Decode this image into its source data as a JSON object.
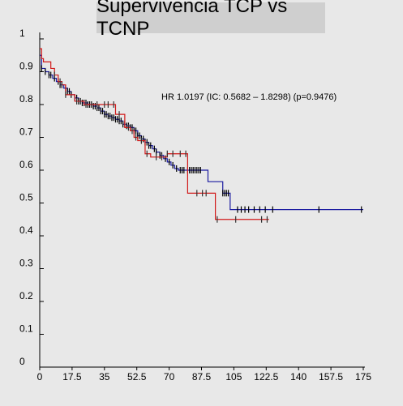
{
  "chart_data": {
    "type": "line",
    "title": "Supervivencia TCP vs TCNP",
    "xlabel": "",
    "ylabel": "",
    "xlim": [
      0,
      175
    ],
    "ylim": [
      0,
      1
    ],
    "x_ticks": [
      "0",
      "17.5",
      "35",
      "52.5",
      "70",
      "87.5",
      "105",
      "122.5",
      "140",
      "157.5",
      "175"
    ],
    "y_ticks": [
      "0",
      "0.1",
      "0.2",
      "0.3",
      "0.4",
      "0.5",
      "0.6",
      "0.7",
      "0.8",
      "0.9",
      "1"
    ],
    "annotation": "HR 1.0197 (IC: 0.5682 – 1.8298) (p=0.9476)",
    "grid": false,
    "legend": "none",
    "series": [
      {
        "color": "#1a1aa0",
        "x": [
          0,
          1,
          3,
          5,
          7,
          9,
          11,
          13,
          15,
          17,
          19,
          21,
          23,
          26,
          29,
          31,
          33,
          35,
          37,
          39,
          41,
          43,
          45,
          47,
          49,
          51,
          53,
          55,
          57,
          59,
          61,
          63,
          65,
          67,
          69,
          71,
          73,
          75,
          77,
          79,
          81,
          83,
          85,
          87,
          89,
          91,
          95,
          99,
          103,
          106,
          110,
          114,
          120,
          150,
          175
        ],
        "y": [
          0.95,
          0.91,
          0.9,
          0.89,
          0.88,
          0.87,
          0.86,
          0.85,
          0.84,
          0.83,
          0.82,
          0.81,
          0.805,
          0.8,
          0.795,
          0.79,
          0.78,
          0.77,
          0.765,
          0.76,
          0.755,
          0.75,
          0.74,
          0.735,
          0.73,
          0.72,
          0.705,
          0.695,
          0.685,
          0.675,
          0.665,
          0.655,
          0.645,
          0.635,
          0.625,
          0.615,
          0.605,
          0.6,
          0.6,
          0.6,
          0.6,
          0.6,
          0.6,
          0.6,
          0.6,
          0.565,
          0.565,
          0.53,
          0.48,
          0.48,
          0.48,
          0.48,
          0.48,
          0.48,
          0.48
        ],
        "censor_x": [
          1,
          3,
          5,
          6,
          8,
          10,
          11,
          12,
          14,
          15,
          16,
          17,
          19,
          20,
          21,
          22,
          23,
          24,
          25,
          26,
          27,
          28,
          29,
          30,
          31,
          32,
          33,
          34,
          35,
          36,
          37,
          38,
          39,
          40,
          41,
          42,
          43,
          44,
          45,
          46,
          47,
          48,
          49,
          50,
          51,
          52,
          53,
          54,
          55,
          56,
          57,
          58,
          59,
          60,
          62,
          63,
          65,
          66,
          68,
          70,
          72,
          74,
          76,
          77,
          78,
          80,
          81,
          82,
          83,
          84,
          85,
          86,
          87,
          99,
          100,
          101,
          102,
          107,
          109,
          111,
          113,
          116,
          119,
          122,
          126,
          151,
          174
        ]
      },
      {
        "color": "#d11919",
        "x": [
          0,
          1,
          2,
          6,
          8,
          10,
          12,
          14,
          19,
          24,
          33,
          41,
          46,
          49,
          51,
          53,
          57,
          60,
          64,
          69,
          76,
          80,
          86,
          92,
          95,
          105,
          122,
          124
        ],
        "y": [
          0.97,
          0.94,
          0.93,
          0.91,
          0.89,
          0.87,
          0.86,
          0.83,
          0.81,
          0.8,
          0.8,
          0.77,
          0.73,
          0.72,
          0.7,
          0.69,
          0.65,
          0.64,
          0.64,
          0.65,
          0.65,
          0.53,
          0.53,
          0.53,
          0.45,
          0.45,
          0.45,
          0.45
        ],
        "censor_x": [
          8,
          11,
          12,
          14,
          20,
          22,
          25,
          28,
          31,
          35,
          37,
          40,
          43,
          48,
          50,
          52,
          55,
          58,
          63,
          66,
          69,
          72,
          76,
          79,
          85,
          88,
          90,
          96,
          106,
          120,
          123
        ]
      }
    ]
  }
}
